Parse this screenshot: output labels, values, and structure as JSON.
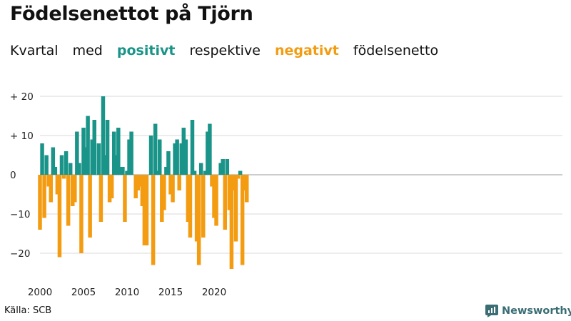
{
  "title": "Födelsenettot på Tjörn",
  "subtitle": {
    "w1": "Kvartal",
    "w2": "med",
    "positive_word": "positivt",
    "w3": "respektive",
    "negative_word": "negativt",
    "w4": "födelsenetto"
  },
  "colors": {
    "positive": "#1a9488",
    "negative": "#f39c12",
    "grid": "#d9d9d9",
    "brand": "#3a6e74"
  },
  "source": "Källa: SCB",
  "brand": {
    "name": "Newsworthy",
    "icon": "newsworthy-logo-icon"
  },
  "chart_data": {
    "type": "bar",
    "title": "Födelsenettot på Tjörn",
    "xlabel": "",
    "ylabel": "",
    "ylim": [
      -25,
      21
    ],
    "grid": true,
    "y_ticks": [
      20,
      10,
      0,
      -10,
      -20
    ],
    "y_tick_labels": [
      "+ 20",
      "+ 10",
      "0",
      "−10",
      "−20"
    ],
    "x_tick_labels": [
      {
        "label": "2000",
        "index": 0
      },
      {
        "label": "2005",
        "index": 20
      },
      {
        "label": "2010",
        "index": 40
      },
      {
        "label": "2015",
        "index": 60
      },
      {
        "label": "2020",
        "index": 80
      }
    ],
    "start": "2000 Q1",
    "values": [
      -14,
      8,
      -11,
      5,
      -3,
      -7,
      7,
      2,
      -5,
      -21,
      5,
      -1,
      6,
      -13,
      3,
      -8,
      -7,
      11,
      3,
      -20,
      12,
      7,
      15,
      -16,
      9,
      14,
      0,
      8,
      -12,
      20,
      5,
      14,
      -7,
      -6,
      11,
      5,
      12,
      2,
      2,
      -12,
      1,
      9,
      11,
      0,
      -6,
      -4,
      -3,
      -8,
      -18,
      -18,
      0,
      10,
      -23,
      13,
      1,
      9,
      -12,
      -9,
      2,
      6,
      -5,
      -7,
      8,
      9,
      -4,
      8,
      12,
      9,
      -12,
      -16,
      14,
      1,
      -17,
      -23,
      3,
      -16,
      1,
      11,
      13,
      -3,
      -11,
      -13,
      0,
      3,
      4,
      -14,
      4,
      -9,
      -24,
      -4,
      -17,
      -1,
      1,
      -23,
      -4,
      -7
    ]
  }
}
